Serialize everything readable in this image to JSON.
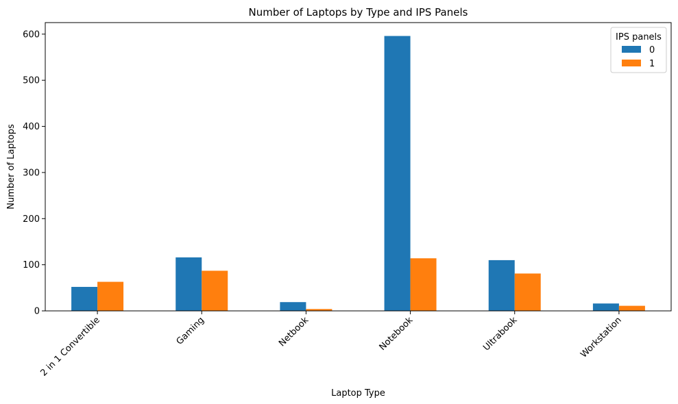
{
  "chart_data": {
    "type": "bar",
    "title": "Number of Laptops by Type and IPS Panels",
    "xlabel": "Laptop Type",
    "ylabel": "Number of Laptops",
    "categories": [
      "2 in 1 Convertible",
      "Gaming",
      "Netbook",
      "Notebook",
      "Ultrabook",
      "Workstation"
    ],
    "series": [
      {
        "name": "0",
        "values": [
          52,
          116,
          19,
          596,
          110,
          16
        ],
        "color": "#1f77b4"
      },
      {
        "name": "1",
        "values": [
          63,
          87,
          4,
          114,
          81,
          11
        ],
        "color": "#ff7f0e"
      }
    ],
    "ylim": [
      0,
      625
    ],
    "yticks": [
      0,
      100,
      200,
      300,
      400,
      500,
      600
    ],
    "grid": false,
    "legend": {
      "title": "IPS panels",
      "placement": "top-right"
    },
    "xtick_rotation": 45
  }
}
